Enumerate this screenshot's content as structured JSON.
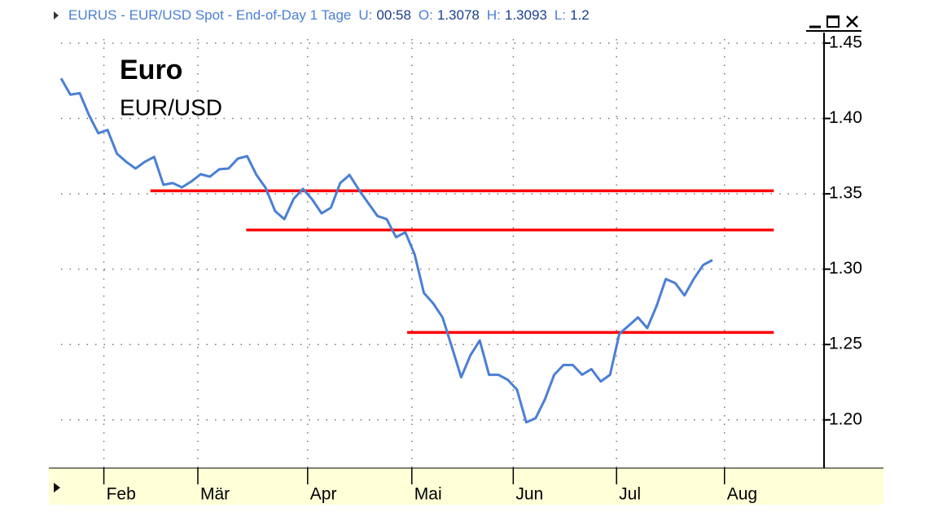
{
  "header": {
    "symbol": "EURUS - EUR/USD Spot - End-of-Day 1 Tage",
    "fields": [
      {
        "label": "U:",
        "value": "00:58"
      },
      {
        "label": "O:",
        "value": "1.3078"
      },
      {
        "label": "H:",
        "value": "1.3093"
      },
      {
        "label": "L:",
        "value": "1.2"
      }
    ]
  },
  "chart_data": {
    "type": "line",
    "title": "Euro",
    "subtitle": "EUR/USD",
    "color": "#4a7fd4",
    "values": [
      1.4266,
      1.4158,
      1.4168,
      1.4022,
      1.3902,
      1.3924,
      1.3766,
      1.3712,
      1.3668,
      1.3712,
      1.3745,
      1.356,
      1.3571,
      1.3543,
      1.3582,
      1.363,
      1.3614,
      1.3663,
      1.3668,
      1.3734,
      1.375,
      1.3625,
      1.3538,
      1.3386,
      1.3332,
      1.3467,
      1.3533,
      1.3462,
      1.337,
      1.3408,
      1.3571,
      1.3625,
      1.3527,
      1.344,
      1.3353,
      1.3332,
      1.3212,
      1.3245,
      1.3098,
      1.2842,
      1.2772,
      1.268,
      1.2484,
      1.2283,
      1.2429,
      1.2527,
      1.2299,
      1.2299,
      1.2266,
      1.2201,
      1.1984,
      1.2011,
      1.2136,
      1.2299,
      1.2364,
      1.2364,
      1.2299,
      1.2337,
      1.2255,
      1.2299,
      1.2571,
      1.2625,
      1.268,
      1.2609,
      1.2755,
      1.2935,
      1.2908,
      1.2826,
      1.2935,
      1.3027,
      1.306
    ],
    "xlim": [
      0,
      82
    ],
    "xticks": [
      {
        "value": 4.6,
        "label": "Feb"
      },
      {
        "value": 14.7,
        "label": "Mär"
      },
      {
        "value": 26.5,
        "label": "Apr"
      },
      {
        "value": 37.7,
        "label": "Mai"
      },
      {
        "value": 48.6,
        "label": "Jun"
      },
      {
        "value": 59.7,
        "label": "Jul"
      },
      {
        "value": 71.3,
        "label": "Aug"
      }
    ],
    "ylim": [
      1.168,
      1.457
    ],
    "yticks": [
      {
        "value": 1.2,
        "label": "1.20"
      },
      {
        "value": 1.25,
        "label": "1.25"
      },
      {
        "value": 1.3,
        "label": "1.30"
      },
      {
        "value": 1.35,
        "label": "1.35"
      },
      {
        "value": 1.4,
        "label": "1.40"
      },
      {
        "value": 1.45,
        "label": "1.45"
      }
    ],
    "grid": true,
    "levels": [
      {
        "value": 1.352,
        "start": 9.6,
        "end": 76.6,
        "color": "#ff0000"
      },
      {
        "value": 1.326,
        "start": 19.9,
        "end": 76.6,
        "color": "#ff0000"
      },
      {
        "value": 1.258,
        "start": 37.2,
        "end": 76.6,
        "color": "#ff0000"
      }
    ]
  }
}
